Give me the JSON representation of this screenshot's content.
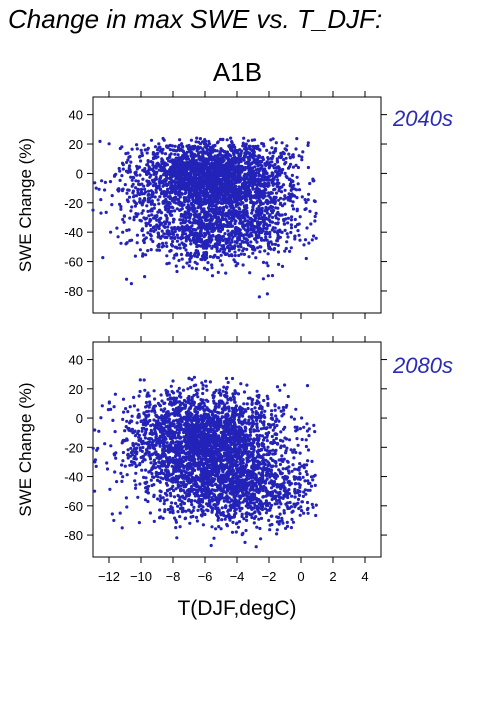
{
  "figure": {
    "title": "Change in max SWE vs. T_DJF:",
    "scenario": "A1B",
    "xlabel": "T(DJF,degC)",
    "point_color": "#2323b8",
    "label_color": "#2b2bb5"
  },
  "chart_data": [
    {
      "type": "scatter",
      "panel": "2040s",
      "ylabel": "SWE Change (%)",
      "xlim": [
        -13,
        5
      ],
      "ylim": [
        -95,
        52
      ],
      "xticks": [
        -12,
        -10,
        -8,
        -6,
        -4,
        -2,
        0,
        2,
        4
      ],
      "yticks": [
        40,
        20,
        0,
        -20,
        -40,
        -60,
        -80
      ],
      "grid": false,
      "cloud": {
        "core": {
          "x_center": -5.5,
          "x_spread": 2.4,
          "y_center": -3,
          "y_spread": 13
        },
        "lower_band": {
          "x_center": -5.2,
          "x_spread": 2.6,
          "y_center": -38,
          "y_spread": 12
        },
        "y_max": 24,
        "y_min": -84,
        "x_min": -13,
        "x_max": 1
      },
      "outliers": [
        [
          -12.8,
          -10
        ],
        [
          -12.5,
          -27
        ],
        [
          -11.9,
          -40
        ],
        [
          -10.9,
          -72
        ],
        [
          -10.6,
          -75
        ],
        [
          -4.4,
          24
        ],
        [
          -2.6,
          -84
        ],
        [
          0.8,
          -5
        ],
        [
          -2.1,
          -82
        ],
        [
          -13.0,
          -25
        ]
      ]
    },
    {
      "type": "scatter",
      "panel": "2080s",
      "ylabel": "SWE Change (%)",
      "xlim": [
        -13,
        5
      ],
      "ylim": [
        -95,
        52
      ],
      "xticks": [
        -12,
        -10,
        -8,
        -6,
        -4,
        -2,
        0,
        2,
        4
      ],
      "yticks": [
        40,
        20,
        0,
        -20,
        -40,
        -60,
        -80
      ],
      "grid": false,
      "cloud": {
        "core": {
          "x_center": -6.0,
          "x_spread": 2.4,
          "y_center": -15,
          "y_spread": 17
        },
        "lower_band": {
          "x_center": -4.0,
          "x_spread": 2.5,
          "y_center": -50,
          "y_spread": 12
        },
        "y_max": 28,
        "y_min": -88,
        "x_min": -13,
        "x_max": 1
      },
      "outliers": [
        [
          -12.8,
          -33
        ],
        [
          -12.9,
          -50
        ],
        [
          -11.7,
          -70
        ],
        [
          -11.3,
          -65
        ],
        [
          -9.8,
          26
        ],
        [
          -2.8,
          -88
        ],
        [
          0.8,
          -5
        ],
        [
          0.5,
          -12
        ],
        [
          -3.5,
          -85
        ]
      ]
    }
  ]
}
